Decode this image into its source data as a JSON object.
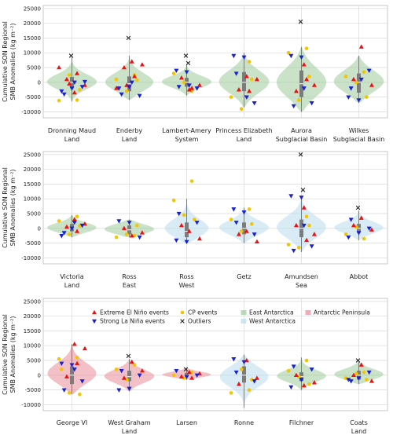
{
  "chart_data": [
    {
      "type": "violin",
      "ylabel": "Cumulative SON Regional SMB Anomalies (kg m⁻²)",
      "ylim": [
        -12000,
        26000
      ],
      "yticks": [
        "-10000",
        "-5000",
        "0",
        "5000",
        "10000",
        "15000",
        "20000",
        "25000"
      ],
      "grid": true,
      "categories": [
        {
          "lines": [
            "Dronning Maud",
            "Land"
          ],
          "region": "east",
          "min": -6500,
          "max": 8500,
          "q1": -2000,
          "q3": 1800,
          "median": 0,
          "outliers": [
            9000
          ],
          "elnino": [
            -3500,
            -1000,
            1000,
            3000,
            5000,
            -500
          ],
          "lanina": [
            -3000,
            -2000,
            -1500,
            -4000,
            0,
            200
          ],
          "cp": [
            -6000,
            -6200,
            2500,
            -2500
          ]
        },
        {
          "lines": [
            "Enderby",
            "Land"
          ],
          "region": "east",
          "min": -6000,
          "max": 9000,
          "q1": -3000,
          "q3": 2000,
          "median": -500,
          "outliers": [
            15000
          ],
          "elnino": [
            7000,
            6000,
            5000,
            2000,
            -2000,
            -1000
          ],
          "lanina": [
            -2000,
            -1500,
            -4500,
            -4000,
            0
          ],
          "cp": [
            2500,
            1000,
            -3000,
            800
          ]
        },
        {
          "lines": [
            "Lambert-Amery",
            "System"
          ],
          "region": "east",
          "min": -4500,
          "max": 6000,
          "q1": -1500,
          "q3": 1500,
          "median": 0,
          "outliers": [
            9000,
            6500
          ],
          "elnino": [
            -2500,
            -1000,
            1500,
            -2000
          ],
          "lanina": [
            4000,
            3500,
            -2000,
            -1500,
            -1000
          ],
          "cp": [
            -3000,
            3000,
            0
          ]
        },
        {
          "lines": [
            "Princess Elizabeth",
            "Land"
          ],
          "region": "east",
          "min": -8500,
          "max": 10000,
          "q1": -3000,
          "q3": 3500,
          "median": 0,
          "outliers": [],
          "elnino": [
            2000,
            1000,
            -2500,
            -3000
          ],
          "lanina": [
            9000,
            8500,
            -7000,
            3000,
            -5000
          ],
          "cp": [
            7000,
            -5000,
            -9000,
            1000
          ]
        },
        {
          "lines": [
            "Aurora",
            "Subglacial Basin"
          ],
          "region": "east",
          "min": -10000,
          "max": 12000,
          "q1": -5000,
          "q3": 4000,
          "median": -500,
          "outliers": [
            20500
          ],
          "elnino": [
            6000,
            -1000,
            -3000,
            1000
          ],
          "lanina": [
            9000,
            8500,
            -7000,
            -8000,
            -2000
          ],
          "cp": [
            11500,
            10000,
            -6000,
            2000
          ]
        },
        {
          "lines": [
            "Wilkes",
            "Subglacial Basin"
          ],
          "region": "east",
          "min": -7000,
          "max": 9000,
          "q1": -3500,
          "q3": 3000,
          "median": 0,
          "outliers": [],
          "elnino": [
            12000,
            -1000,
            1000
          ],
          "lanina": [
            -5000,
            -6000,
            4000,
            -2000,
            1000
          ],
          "cp": [
            3500,
            2000,
            0,
            -5000
          ]
        }
      ]
    },
    {
      "type": "violin",
      "ylabel": "Cumulative SON Regional SMB Anomalies (kg m⁻²)",
      "ylim": [
        -12000,
        26000
      ],
      "yticks": [
        "-10000",
        "-5000",
        "0",
        "5000",
        "10000",
        "15000",
        "20000",
        "25000"
      ],
      "grid": true,
      "categories": [
        {
          "lines": [
            "Victoria",
            "Land"
          ],
          "region": "east",
          "min": -3000,
          "max": 4500,
          "q1": -1000,
          "q3": 1500,
          "median": 0,
          "outliers": [],
          "elnino": [
            3000,
            1500,
            500,
            -1000
          ],
          "lanina": [
            -2500,
            0,
            1000,
            -1500,
            2000
          ],
          "cp": [
            4000,
            2500,
            -2000,
            800
          ]
        },
        {
          "lines": [
            "Ross",
            "East"
          ],
          "region": "east",
          "min": -3000,
          "max": 3000,
          "q1": -2000,
          "q3": 1000,
          "median": -500,
          "outliers": [],
          "elnino": [
            -2500,
            -1500,
            0
          ],
          "lanina": [
            2500,
            2000,
            -3000
          ],
          "cp": [
            -2500,
            -3000,
            -2000,
            1000
          ]
        },
        {
          "lines": [
            "Ross",
            "West"
          ],
          "region": "west",
          "min": -5000,
          "max": 10000,
          "q1": -3000,
          "q3": 2000,
          "median": -1000,
          "outliers": [],
          "elnino": [
            -1000,
            -3500,
            1000
          ],
          "lanina": [
            -4000,
            -4500,
            2000,
            5000
          ],
          "cp": [
            16000,
            9500,
            4500,
            3000
          ]
        },
        {
          "lines": [
            "Getz"
          ],
          "region": "west",
          "min": -5000,
          "max": 7000,
          "q1": -2000,
          "q3": 2000,
          "median": 0,
          "outliers": [],
          "elnino": [
            -1000,
            -4500,
            -2000
          ],
          "lanina": [
            6500,
            5500,
            -2000,
            2000
          ],
          "cp": [
            6500,
            3000,
            -1000,
            1500
          ]
        },
        {
          "lines": [
            "Amundsen",
            "Sea"
          ],
          "region": "west",
          "min": -8000,
          "max": 11000,
          "q1": -3000,
          "q3": 3000,
          "median": 0,
          "outliers": [
            25000,
            13000
          ],
          "elnino": [
            7000,
            -2000,
            1000,
            -4000
          ],
          "lanina": [
            11000,
            10500,
            -6000,
            -7500,
            1000
          ],
          "cp": [
            4000,
            -5500,
            -6500,
            1000
          ]
        },
        {
          "lines": [
            "Abbot"
          ],
          "region": "west",
          "min": -4000,
          "max": 6000,
          "q1": -1500,
          "q3": 1500,
          "median": 0,
          "outliers": [
            7000
          ],
          "elnino": [
            3500,
            -500,
            1000
          ],
          "lanina": [
            -3000,
            -1500,
            0,
            3000
          ],
          "cp": [
            -3500,
            -2000,
            500
          ]
        }
      ]
    },
    {
      "type": "violin",
      "ylabel": "Cumulative SON Regional SMB Anomalies (kg m⁻²)",
      "ylim": [
        -12000,
        26000
      ],
      "yticks": [
        "-10000",
        "-5000",
        "0",
        "5000",
        "10000",
        "15000",
        "20000",
        "25000"
      ],
      "grid": true,
      "legend": {
        "position": "top",
        "items": [
          {
            "key": "elnino",
            "label": "Extreme El Niño events"
          },
          {
            "key": "cp",
            "label": "CP events"
          },
          {
            "key": "east",
            "label": "East Antarctica"
          },
          {
            "key": "peninsula",
            "label": "Antarctic Peninsula"
          },
          {
            "key": "lanina",
            "label": "Strong La Niña events"
          },
          {
            "key": "outlier",
            "label": "Outliers"
          },
          {
            "key": "west",
            "label": "West Antarctica"
          }
        ]
      },
      "categories": [
        {
          "lines": [
            "George VI"
          ],
          "region": "peninsula",
          "min": -6500,
          "max": 10500,
          "q1": -3000,
          "q3": 3000,
          "median": 0,
          "outliers": [],
          "elnino": [
            10500,
            9000,
            -500,
            4000
          ],
          "lanina": [
            4000,
            3500,
            -2000,
            -5000,
            2000
          ],
          "cp": [
            6000,
            5500,
            -6000,
            -6500,
            2000
          ]
        },
        {
          "lines": [
            "West Graham",
            "Land"
          ],
          "region": "peninsula",
          "min": -5500,
          "max": 5500,
          "q1": -2000,
          "q3": 1500,
          "median": -500,
          "outliers": [
            6500
          ],
          "elnino": [
            4500,
            1500,
            -1000
          ],
          "lanina": [
            -5000,
            -4500,
            0,
            1500
          ],
          "cp": [
            3500,
            2000,
            -1500
          ]
        },
        {
          "lines": [
            "Larsen"
          ],
          "region": "peninsula",
          "min": -1500,
          "max": 2500,
          "q1": -500,
          "q3": 800,
          "median": 0,
          "outliers": [
            2000
          ],
          "elnino": [
            1000,
            500,
            -500,
            -1000
          ],
          "lanina": [
            1500,
            -500,
            0
          ],
          "cp": [
            1000,
            0,
            -1000
          ]
        },
        {
          "lines": [
            "Ronne"
          ],
          "region": "west",
          "min": -11000,
          "max": 7000,
          "q1": -2500,
          "q3": 3000,
          "median": 0,
          "outliers": [],
          "elnino": [
            5000,
            -1000,
            -3000
          ],
          "lanina": [
            5500,
            4500,
            -2000,
            1000
          ],
          "cp": [
            -5000,
            -6000,
            2000,
            -1500
          ]
        },
        {
          "lines": [
            "Filchner"
          ],
          "region": "east",
          "min": -5000,
          "max": 6000,
          "q1": -2000,
          "q3": 1000,
          "median": -500,
          "outliers": [],
          "elnino": [
            -3500,
            -2500,
            0
          ],
          "lanina": [
            -4000,
            -1500,
            2000,
            3000
          ],
          "cp": [
            5000,
            1500,
            -500,
            -3000
          ]
        },
        {
          "lines": [
            "Coats",
            "Land"
          ],
          "region": "east",
          "min": -3000,
          "max": 4500,
          "q1": -1500,
          "q3": 1500,
          "median": 0,
          "outliers": [
            5000
          ],
          "elnino": [
            3500,
            -2000,
            0
          ],
          "lanina": [
            -1500,
            -1000,
            1000,
            -2000
          ],
          "cp": [
            1000,
            -1000,
            500,
            -1500
          ]
        }
      ]
    }
  ],
  "colors": {
    "east": "#9ccb9b",
    "west": "#b9dcec",
    "peninsula": "#e88c98",
    "elnino": "#ee1111",
    "lanina": "#1a22cc",
    "cp": "#f2c500",
    "outlier": "#222222",
    "box": "#7c7c7c",
    "grid": "#d9d9d9",
    "frame": "#bbbbbb"
  }
}
